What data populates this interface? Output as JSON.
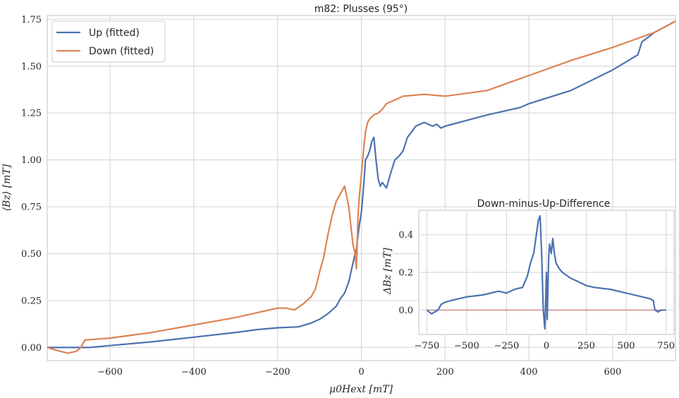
{
  "main_chart": {
    "type": "line",
    "title": "m82: Plusses (95°)",
    "xlabel": "μ0Hext [mT]",
    "ylabel": "⟨Bz⟩ [mT]",
    "xlim": [
      -750,
      750
    ],
    "ylim": [
      -0.07,
      1.77
    ],
    "xticks": [
      -600,
      -400,
      -200,
      0,
      200,
      400,
      600
    ],
    "yticks": [
      0.0,
      0.25,
      0.5,
      0.75,
      1.0,
      1.25,
      1.5,
      1.75
    ],
    "xtick_labels": [
      "−600",
      "−400",
      "−200",
      "0",
      "200",
      "400",
      "600"
    ],
    "ytick_labels": [
      "0.00",
      "0.25",
      "0.50",
      "0.75",
      "1.00",
      "1.25",
      "1.50",
      "1.75"
    ],
    "grid": true,
    "legend_position": "top-left",
    "series": [
      {
        "name": "Up (fitted)",
        "color": "#4c72b0",
        "x": [
          -750,
          -700,
          -650,
          -600,
          -500,
          -400,
          -300,
          -250,
          -200,
          -150,
          -120,
          -100,
          -80,
          -60,
          -50,
          -40,
          -30,
          -25,
          -20,
          -15,
          -12,
          -10,
          -5,
          0,
          5,
          10,
          15,
          20,
          25,
          30,
          35,
          40,
          45,
          50,
          60,
          70,
          80,
          90,
          100,
          110,
          120,
          130,
          150,
          170,
          180,
          190,
          200,
          300,
          380,
          400,
          500,
          600,
          660,
          670,
          700,
          750
        ],
        "y": [
          0.0,
          0.0,
          0.0,
          0.01,
          0.03,
          0.055,
          0.08,
          0.095,
          0.105,
          0.11,
          0.13,
          0.15,
          0.18,
          0.22,
          0.26,
          0.29,
          0.35,
          0.4,
          0.45,
          0.5,
          0.52,
          0.56,
          0.65,
          0.72,
          0.85,
          1.0,
          1.02,
          1.05,
          1.1,
          1.12,
          1.0,
          0.9,
          0.86,
          0.88,
          0.85,
          0.93,
          1.0,
          1.02,
          1.05,
          1.12,
          1.15,
          1.18,
          1.2,
          1.18,
          1.19,
          1.17,
          1.18,
          1.24,
          1.28,
          1.3,
          1.37,
          1.48,
          1.56,
          1.63,
          1.68,
          1.74
        ]
      },
      {
        "name": "Down (fitted)",
        "color": "#dd8452",
        "x": [
          -750,
          -720,
          -700,
          -680,
          -670,
          -660,
          -600,
          -500,
          -400,
          -300,
          -200,
          -180,
          -160,
          -140,
          -120,
          -110,
          -100,
          -90,
          -80,
          -70,
          -60,
          -50,
          -40,
          -30,
          -25,
          -20,
          -15,
          -12,
          -10,
          -8,
          -5,
          0,
          5,
          10,
          15,
          20,
          30,
          40,
          50,
          60,
          80,
          100,
          150,
          200,
          300,
          400,
          500,
          600,
          700,
          750
        ],
        "y": [
          0.0,
          -0.02,
          -0.03,
          -0.02,
          0.0,
          0.04,
          0.05,
          0.08,
          0.12,
          0.16,
          0.21,
          0.21,
          0.2,
          0.23,
          0.27,
          0.31,
          0.4,
          0.48,
          0.6,
          0.7,
          0.78,
          0.82,
          0.86,
          0.75,
          0.65,
          0.55,
          0.5,
          0.42,
          0.55,
          0.7,
          0.8,
          0.92,
          1.05,
          1.15,
          1.2,
          1.22,
          1.24,
          1.25,
          1.27,
          1.3,
          1.32,
          1.34,
          1.35,
          1.34,
          1.37,
          1.45,
          1.53,
          1.6,
          1.68,
          1.74
        ]
      }
    ]
  },
  "inset_chart": {
    "type": "line",
    "title": "Down-minus-Up-Difference",
    "xlabel": "",
    "ylabel": "ΔBz [mT]",
    "xlim": [
      -800,
      800
    ],
    "ylim": [
      -0.13,
      0.53
    ],
    "xticks": [
      -750,
      -500,
      -250,
      0,
      250,
      500,
      750
    ],
    "yticks": [
      0.0,
      0.2,
      0.4
    ],
    "xtick_labels": [
      "−750",
      "−500",
      "−250",
      "0",
      "250",
      "500",
      "750"
    ],
    "ytick_labels": [
      "0.0",
      "0.2",
      "0.4"
    ],
    "grid": true,
    "zero_line_color": "#c44e52",
    "series": [
      {
        "name": "",
        "color": "#4c72b0",
        "x": [
          -750,
          -720,
          -700,
          -680,
          -660,
          -640,
          -600,
          -500,
          -400,
          -300,
          -250,
          -200,
          -150,
          -120,
          -100,
          -80,
          -60,
          -50,
          -40,
          -30,
          -20,
          -10,
          -5,
          0,
          5,
          10,
          15,
          20,
          30,
          40,
          50,
          60,
          80,
          100,
          150,
          200,
          250,
          300,
          400,
          500,
          600,
          650,
          670,
          680,
          700,
          720,
          750
        ],
        "y": [
          0.0,
          -0.02,
          -0.01,
          0.0,
          0.03,
          0.04,
          0.05,
          0.07,
          0.08,
          0.1,
          0.09,
          0.11,
          0.12,
          0.18,
          0.25,
          0.3,
          0.42,
          0.48,
          0.5,
          0.3,
          0.0,
          -0.1,
          0.05,
          0.2,
          -0.05,
          0.15,
          0.3,
          0.35,
          0.3,
          0.38,
          0.3,
          0.25,
          0.22,
          0.2,
          0.17,
          0.15,
          0.13,
          0.12,
          0.11,
          0.09,
          0.07,
          0.06,
          0.05,
          0.0,
          -0.01,
          0.0,
          0.0
        ]
      }
    ]
  }
}
